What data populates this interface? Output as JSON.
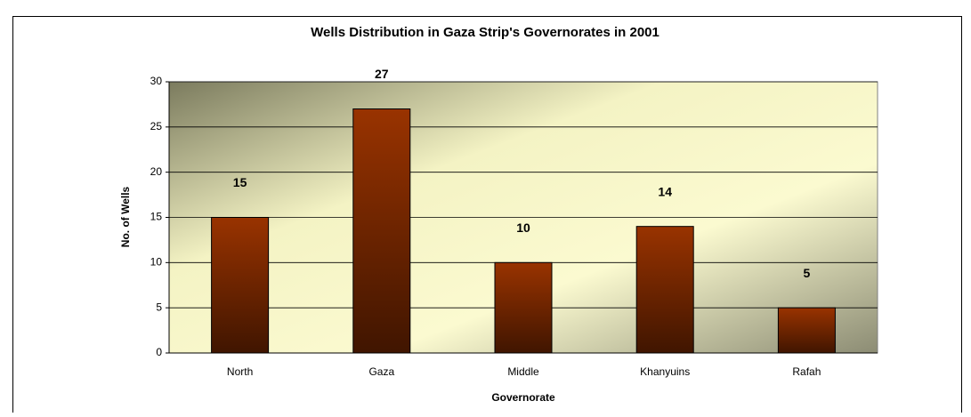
{
  "chart_data": {
    "type": "bar",
    "title": "Wells Distribution in Gaza Strip's Governorates in 2001",
    "x_label": "Governorate",
    "y_label": "No. of Wells",
    "categories": [
      "North",
      "Gaza",
      "Middle",
      "Khanyuins",
      "Rafah"
    ],
    "values": [
      15,
      27,
      10,
      14,
      5
    ],
    "color": "#993300",
    "ylim": [
      0,
      30
    ],
    "yticks": [
      0,
      5,
      10,
      15,
      20,
      25,
      30
    ],
    "grid": true
  }
}
